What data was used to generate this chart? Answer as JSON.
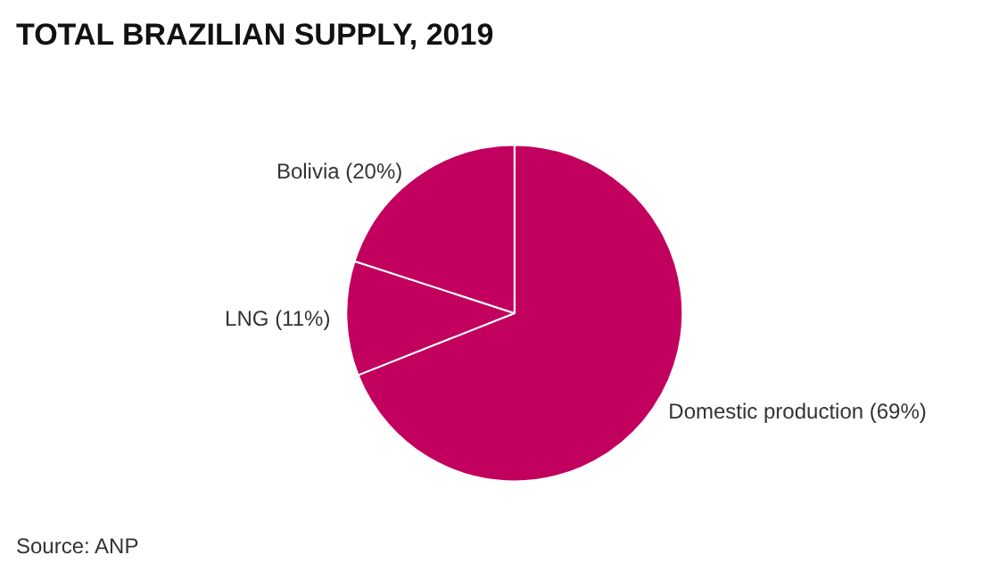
{
  "chart_data": {
    "type": "pie",
    "title": "TOTAL BRAZILIAN SUPPLY, 2019",
    "categories": [
      "Domestic production",
      "LNG",
      "Bolivia"
    ],
    "values": [
      69,
      11,
      20
    ],
    "value_labels": [
      "(69%)",
      "(11%)",
      "(20%)"
    ],
    "colors": [
      "#c2005e",
      "#c2005e",
      "#c2005e"
    ],
    "annotations": [
      "Source: ANP"
    ]
  }
}
